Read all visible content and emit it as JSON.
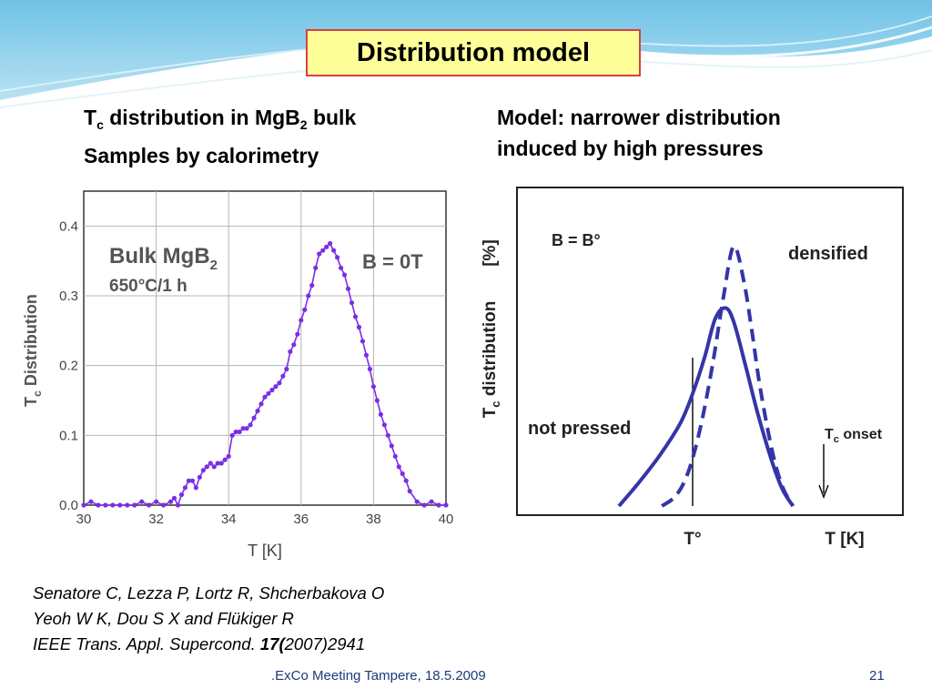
{
  "slide": {
    "title": "Distribution model",
    "left_heading": {
      "tc": "T",
      "tc_sub": "c",
      "line1_rest": " distribution in MgB",
      "mgb_sub": "2",
      "line1_end": " bulk",
      "line2": "Samples  by calorimetry"
    },
    "right_heading": {
      "line1": "Model: narrower distribution",
      "line2": "induced by high pressures"
    },
    "citation": {
      "line1": "Senatore C, Lezza P, Lortz R, Shcherbakova O",
      "line2": "Yeoh W K, Dou S X and Flükiger R",
      "line3_prefix": "IEEE Trans. Appl. Supercond. ",
      "line3_volume": "17(",
      "line3_suffix": "2007)2941"
    },
    "footer": ".ExCo Meeting Tampere, 18.5.2009",
    "page_number": "21"
  },
  "colors": {
    "title_fill": "#ffff99",
    "title_border": "#d94040",
    "left_series": "#7a2ee6",
    "right_series": "#3535a8",
    "footer_text": "#1a3a7a"
  },
  "chart_data": [
    {
      "type": "line",
      "title": "",
      "xlabel": "T  [K]",
      "ylabel": "T",
      "ylabel_sub": "c",
      "ylabel_rest": " Distribution",
      "xlim": [
        30,
        40
      ],
      "ylim": [
        0,
        0.45
      ],
      "xticks": [
        30,
        32,
        34,
        36,
        38,
        40
      ],
      "yticks": [
        0.0,
        0.1,
        0.2,
        0.3,
        0.4
      ],
      "xtick_labels": [
        "30",
        "32",
        "34",
        "36",
        "38",
        "40"
      ],
      "ytick_labels": [
        "0.0",
        "0.1",
        "0.2",
        "0.3",
        "0.4"
      ],
      "grid": true,
      "annotations": {
        "line1": "Bulk MgB",
        "line1_sub": "2",
        "line2": "650°C/1 h",
        "field": "B = 0T"
      },
      "series": [
        {
          "x": [
            30.0,
            30.2,
            30.4,
            30.6,
            30.8,
            31.0,
            31.2,
            31.4,
            31.6,
            31.8,
            32.0,
            32.2,
            32.4,
            32.5,
            32.6,
            32.7,
            32.8,
            32.9,
            33.0,
            33.1,
            33.2,
            33.3,
            33.4,
            33.5,
            33.6,
            33.7,
            33.8,
            33.9,
            34.0,
            34.1,
            34.2,
            34.3,
            34.4,
            34.5,
            34.6,
            34.7,
            34.8,
            34.9,
            35.0,
            35.1,
            35.2,
            35.3,
            35.4,
            35.5,
            35.6,
            35.7,
            35.8,
            35.9,
            36.0,
            36.1,
            36.2,
            36.3,
            36.4,
            36.5,
            36.6,
            36.7,
            36.8,
            36.9,
            37.0,
            37.1,
            37.2,
            37.3,
            37.4,
            37.5,
            37.6,
            37.7,
            37.8,
            37.9,
            38.0,
            38.1,
            38.2,
            38.3,
            38.4,
            38.5,
            38.6,
            38.7,
            38.8,
            38.9,
            39.0,
            39.2,
            39.4,
            39.6,
            39.8,
            40.0
          ],
          "y": [
            0.0,
            0.005,
            0.0,
            0.0,
            0.0,
            0.0,
            0.0,
            0.0,
            0.005,
            0.0,
            0.005,
            0.0,
            0.005,
            0.01,
            0.0,
            0.015,
            0.025,
            0.035,
            0.035,
            0.025,
            0.04,
            0.05,
            0.055,
            0.06,
            0.055,
            0.06,
            0.06,
            0.065,
            0.07,
            0.1,
            0.105,
            0.105,
            0.11,
            0.11,
            0.115,
            0.125,
            0.135,
            0.145,
            0.155,
            0.16,
            0.165,
            0.17,
            0.175,
            0.185,
            0.195,
            0.22,
            0.23,
            0.245,
            0.265,
            0.28,
            0.3,
            0.315,
            0.34,
            0.36,
            0.365,
            0.37,
            0.375,
            0.365,
            0.355,
            0.34,
            0.33,
            0.31,
            0.29,
            0.27,
            0.255,
            0.235,
            0.215,
            0.195,
            0.17,
            0.15,
            0.13,
            0.115,
            0.1,
            0.085,
            0.07,
            0.055,
            0.045,
            0.035,
            0.02,
            0.005,
            0.0,
            0.005,
            0.0,
            0.0
          ]
        }
      ]
    },
    {
      "type": "line",
      "title": "",
      "xlabel": "T  [K]",
      "x_marker_label": "T°",
      "ylabel": "T",
      "ylabel_sub": "c",
      "ylabel_rest": " distribution",
      "ylabel_unit": "[%]",
      "xlim": [
        0,
        10
      ],
      "ylim": [
        0,
        10
      ],
      "grid": false,
      "annotations": {
        "field": "B = B°",
        "onset": "T",
        "onset_sub": "c",
        "onset_rest": " onset"
      },
      "t_marker_x": 3.6,
      "series": [
        {
          "name": "not pressed",
          "style": "solid",
          "x": [
            0.0,
            1.0,
            2.0,
            3.0,
            3.6,
            4.2,
            4.7,
            5.2,
            5.6,
            6.2,
            6.8,
            7.5,
            8.0,
            8.5
          ],
          "y": [
            0.0,
            0.9,
            1.9,
            3.1,
            4.2,
            5.6,
            7.0,
            7.4,
            6.9,
            5.2,
            3.4,
            1.6,
            0.6,
            0.0
          ]
        },
        {
          "name": "densified",
          "style": "dashed",
          "x": [
            2.1,
            2.8,
            3.4,
            4.0,
            4.6,
            5.1,
            5.6,
            6.1,
            6.5,
            6.9,
            7.5,
            8.0,
            8.5
          ],
          "y": [
            0.0,
            0.4,
            1.3,
            3.0,
            5.4,
            7.8,
            9.7,
            8.4,
            6.5,
            4.4,
            2.0,
            0.7,
            0.0
          ]
        }
      ]
    }
  ]
}
